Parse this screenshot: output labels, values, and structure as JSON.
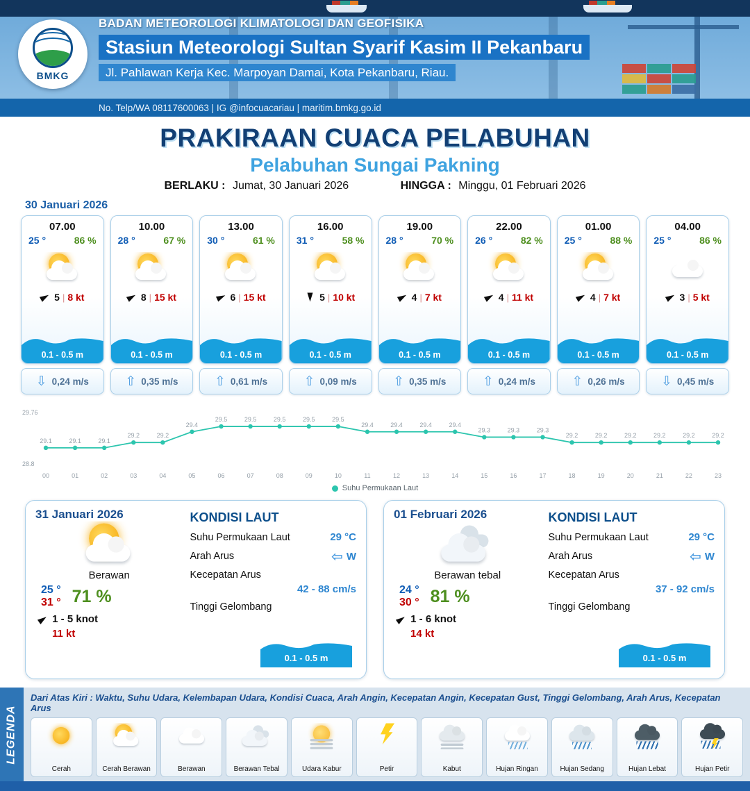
{
  "colors": {
    "accent_blue": "#1b72bf",
    "title_navy": "#123f74",
    "subtitle_blue": "#3fa3e0",
    "temp_blue": "#0f5cb5",
    "humidity_green": "#4e8f1f",
    "wind_red": "#c00000",
    "wave_blue": "#18a0dd",
    "line_teal": "#2cc5ae"
  },
  "header": {
    "logo_label": "BMKG",
    "agency": "BADAN METEOROLOGI KLIMATOLOGI DAN GEOFISIKA",
    "station": "Stasiun Meteorologi Sultan Syarif Kasim II Pekanbaru",
    "address": "Jl. Pahlawan Kerja Kec. Marpoyan Damai, Kota Pekanbaru, Riau.",
    "contact": "No. Telp/WA 08117600063 | IG @infocuacariau | maritim.bmkg.go.id"
  },
  "title": {
    "main": "PRAKIRAAN CUACA PELABUHAN",
    "port": "Pelabuhan Sungai Pakning",
    "valid_from_label": "BERLAKU :",
    "valid_from": "Jumat, 30 Januari 2026",
    "valid_to_label": "HINGGA :",
    "valid_to": "Minggu, 01 Februari 2026"
  },
  "forecast": {
    "date": "30 Januari 2026",
    "cards": [
      {
        "time": "07.00",
        "temp": "25 °",
        "humidity": "86 %",
        "icon": "cerah-berawan",
        "wind_rot": -30,
        "wind_val": "5",
        "wind_kt": "8 kt",
        "wave": "0.1 - 0.5 m",
        "current_dir": "down",
        "current": "0,24 m/s"
      },
      {
        "time": "10.00",
        "temp": "28 °",
        "humidity": "67 %",
        "icon": "cerah-berawan",
        "wind_rot": -30,
        "wind_val": "8",
        "wind_kt": "15 kt",
        "wave": "0.1 - 0.5 m",
        "current_dir": "up",
        "current": "0,35 m/s"
      },
      {
        "time": "13.00",
        "temp": "30 °",
        "humidity": "61 %",
        "icon": "cerah-berawan",
        "wind_rot": -25,
        "wind_val": "6",
        "wind_kt": "15 kt",
        "wave": "0.1 - 0.5 m",
        "current_dir": "up",
        "current": "0,61 m/s"
      },
      {
        "time": "16.00",
        "temp": "31 °",
        "humidity": "58 %",
        "icon": "cerah-berawan",
        "wind_rot": 90,
        "wind_val": "5",
        "wind_kt": "10 kt",
        "wave": "0.1 - 0.5 m",
        "current_dir": "up",
        "current": "0,09 m/s"
      },
      {
        "time": "19.00",
        "temp": "28 °",
        "humidity": "70 %",
        "icon": "cerah-berawan",
        "wind_rot": -30,
        "wind_val": "4",
        "wind_kt": "7 kt",
        "wave": "0.1 - 0.5 m",
        "current_dir": "up",
        "current": "0,35 m/s"
      },
      {
        "time": "22.00",
        "temp": "26 °",
        "humidity": "82 %",
        "icon": "cerah-berawan",
        "wind_rot": -30,
        "wind_val": "4",
        "wind_kt": "11 kt",
        "wave": "0.1 - 0.5 m",
        "current_dir": "up",
        "current": "0,24 m/s"
      },
      {
        "time": "01.00",
        "temp": "25 °",
        "humidity": "88 %",
        "icon": "cerah-berawan",
        "wind_rot": -30,
        "wind_val": "4",
        "wind_kt": "7 kt",
        "wave": "0.1 - 0.5 m",
        "current_dir": "up",
        "current": "0,26 m/s"
      },
      {
        "time": "04.00",
        "temp": "25 °",
        "humidity": "86 %",
        "icon": "berawan",
        "wind_rot": -30,
        "wind_val": "3",
        "wind_kt": "5 kt",
        "wave": "0.1 - 0.5 m",
        "current_dir": "down",
        "current": "0,45 m/s"
      }
    ]
  },
  "chart_data": {
    "type": "line",
    "title": "",
    "xlabel": "",
    "ylabel": "",
    "x": [
      "00",
      "01",
      "02",
      "03",
      "04",
      "05",
      "06",
      "07",
      "08",
      "09",
      "10",
      "11",
      "12",
      "13",
      "14",
      "15",
      "16",
      "17",
      "18",
      "19",
      "20",
      "21",
      "22",
      "23"
    ],
    "series": [
      {
        "name": "Suhu Permukaan Laut",
        "values": [
          29.1,
          29.1,
          29.1,
          29.2,
          29.2,
          29.4,
          29.5,
          29.5,
          29.5,
          29.5,
          29.5,
          29.4,
          29.4,
          29.4,
          29.4,
          29.3,
          29.3,
          29.3,
          29.2,
          29.2,
          29.2,
          29.2,
          29.2,
          29.2
        ]
      }
    ],
    "ylim": [
      28.8,
      29.76
    ],
    "grid": false,
    "legend_position": "bottom",
    "line_color": "#2cc5ae"
  },
  "daily": [
    {
      "date": "31 Januari 2026",
      "icon": "cerah-berawan",
      "condition": "Berawan",
      "temp_min": "25 °",
      "temp_max": "31 °",
      "humidity": "71 %",
      "wind_rot": -35,
      "wind": "1 - 5 knot",
      "gust": "11 kt",
      "sea": {
        "title": "KONDISI LAUT",
        "sst_label": "Suhu Permukaan Laut",
        "sst": "29 °C",
        "current_dir_label": "Arah Arus",
        "current_dir": "W",
        "current_speed_label": "Kecepatan Arus",
        "current_speed": "42 - 88 cm/s",
        "wave_label": "Tinggi Gelombang",
        "wave": "0.1 - 0.5 m"
      }
    },
    {
      "date": "01 Februari 2026",
      "icon": "berawan-tebal",
      "condition": "Berawan tebal",
      "temp_min": "24 °",
      "temp_max": "30 °",
      "humidity": "81 %",
      "wind_rot": -35,
      "wind": "1 - 6 knot",
      "gust": "14 kt",
      "sea": {
        "title": "KONDISI LAUT",
        "sst_label": "Suhu Permukaan Laut",
        "sst": "29 °C",
        "current_dir_label": "Arah Arus",
        "current_dir": "W",
        "current_speed_label": "Kecepatan Arus",
        "current_speed": "37 - 92 cm/s",
        "wave_label": "Tinggi Gelombang",
        "wave": "0.1 - 0.5 m"
      }
    }
  ],
  "legend": {
    "title": "LEGENDA",
    "description": "Dari Atas Kiri : Waktu, Suhu Udara, Kelembapan Udara, Kondisi Cuaca, Arah Angin, Kecepatan Angin, Kecepatan Gust, Tinggi Gelombang, Arah Arus, Kecepatan Arus",
    "items": [
      {
        "label": "Cerah",
        "icon": "cerah"
      },
      {
        "label": "Cerah Berawan",
        "icon": "cerah-berawan"
      },
      {
        "label": "Berawan",
        "icon": "berawan"
      },
      {
        "label": "Berawan Tebal",
        "icon": "berawan-tebal"
      },
      {
        "label": "Udara Kabur",
        "icon": "udara-kabur"
      },
      {
        "label": "Petir",
        "icon": "petir"
      },
      {
        "label": "Kabut",
        "icon": "kabut"
      },
      {
        "label": "Hujan Ringan",
        "icon": "hujan-ringan"
      },
      {
        "label": "Hujan Sedang",
        "icon": "hujan-sedang"
      },
      {
        "label": "Hujan Lebat",
        "icon": "hujan-lebat"
      },
      {
        "label": "Hujan Petir",
        "icon": "hujan-petir"
      }
    ]
  }
}
